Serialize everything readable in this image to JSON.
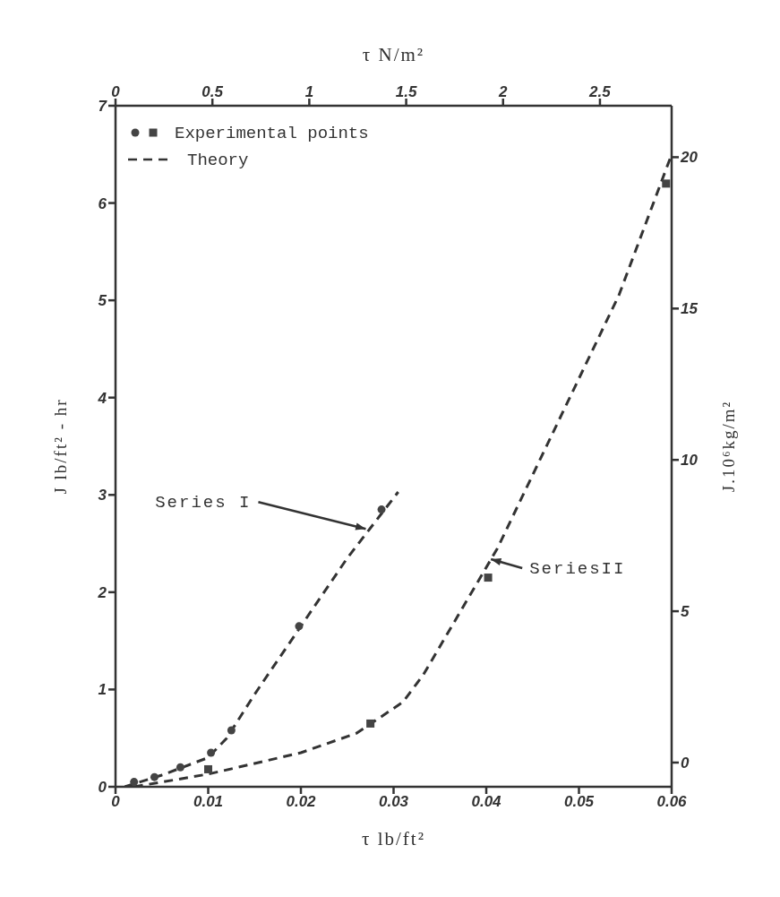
{
  "chart_data": {
    "type": "scatter",
    "xlabel": "τ lb/ft²",
    "x2label": "τ N/m²",
    "ylabel": "J lb/ft² - hr",
    "y2label": "J.10⁶kg/m²",
    "xlim": [
      0,
      0.06
    ],
    "xticks": [
      0,
      0.01,
      0.02,
      0.03,
      0.04,
      0.05,
      0.06
    ],
    "x2lim": [
      0,
      2.87
    ],
    "x2ticks": [
      0,
      0.5,
      1,
      1.5,
      2,
      2.5
    ],
    "ylim": [
      0,
      7
    ],
    "yticks": [
      0,
      1,
      2,
      3,
      4,
      5,
      6,
      7
    ],
    "y2lim": [
      -0.8,
      21.7
    ],
    "y2ticks": [
      0,
      5,
      10,
      15,
      20
    ],
    "grid": false,
    "legend": "top left",
    "series": [
      {
        "name": "Experimental points",
        "marker": "circle",
        "color": "#444444",
        "x": [
          0.002,
          0.0042,
          0.007,
          0.0103,
          0.0125,
          0.0198,
          0.0287
        ],
        "values": [
          0.05,
          0.1,
          0.2,
          0.35,
          0.58,
          1.65,
          2.85
        ]
      },
      {
        "marker": "square",
        "color": "#444444",
        "x": [
          0.01,
          0.0275,
          0.0402,
          0.0594
        ],
        "values": [
          0.18,
          0.65,
          2.15,
          6.2
        ]
      },
      {
        "name": "Theory",
        "type": "line",
        "marker": "none",
        "line_style": "dashed",
        "color": "#333333",
        "x": [
          0.001,
          0.005,
          0.01,
          0.012,
          0.015,
          0.02,
          0.025,
          0.0305
        ],
        "values": [
          0,
          0.12,
          0.3,
          0.5,
          0.95,
          1.65,
          2.35,
          3.03
        ]
      },
      {
        "type": "line",
        "marker": "none",
        "line_style": "dashed",
        "color": "#333333",
        "x": [
          0.002,
          0.01,
          0.02,
          0.026,
          0.031,
          0.0332,
          0.0412,
          0.0543,
          0.06
        ],
        "values": [
          0,
          0.13,
          0.35,
          0.55,
          0.87,
          1.15,
          2.45,
          5.05,
          6.5
        ]
      }
    ],
    "annotations": [
      {
        "text": "Series I",
        "x": 0.027,
        "y": 2.65
      },
      {
        "text": "SeriesII",
        "x": 0.0405,
        "y": 2.34
      }
    ]
  }
}
